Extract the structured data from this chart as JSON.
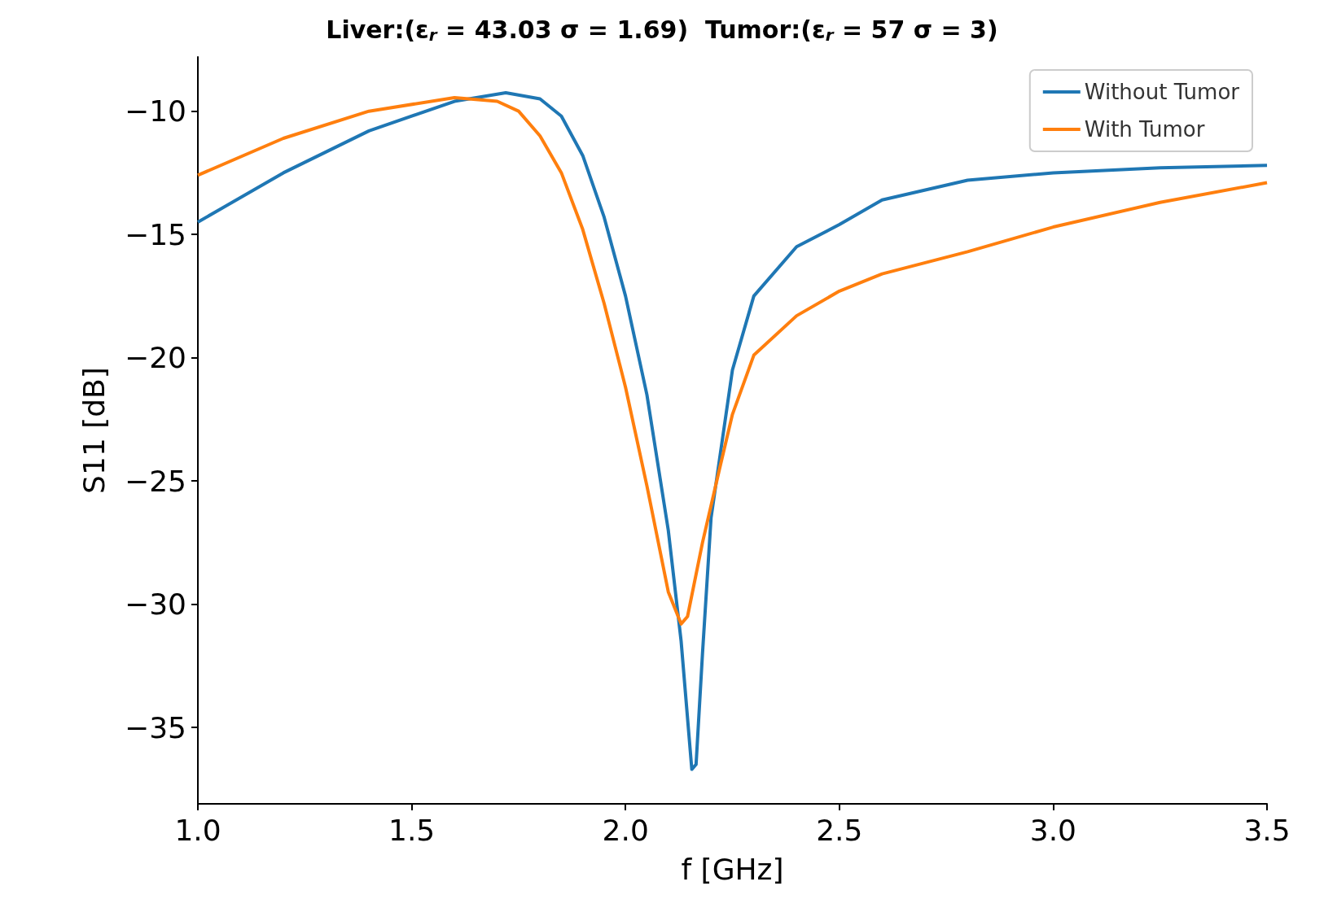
{
  "chart_data": {
    "type": "line",
    "title": "Liver:(ε$_{r}$ = 43.03 σ = 1.69)  Tumor:(ε$_{r}$ = 57 σ = 3)",
    "xlabel": "f [GHz]",
    "ylabel": "S11 [dB]",
    "xlim": [
      1.0,
      3.5
    ],
    "ylim": [
      -38.1,
      -7.8
    ],
    "xticks": [
      {
        "value": 1,
        "label": "1.0"
      },
      {
        "value": 1.5,
        "label": "1.5"
      },
      {
        "value": 2,
        "label": "2.0"
      },
      {
        "value": 2.5,
        "label": "2.5"
      },
      {
        "value": 3,
        "label": "3.0"
      },
      {
        "value": 3.5,
        "label": "3.5"
      }
    ],
    "yticks": [
      {
        "value": -35,
        "label": "−35"
      },
      {
        "value": -30,
        "label": "−30"
      },
      {
        "value": -25,
        "label": "−25"
      },
      {
        "value": -20,
        "label": "−20"
      },
      {
        "value": -15,
        "label": "−15"
      },
      {
        "value": -10,
        "label": "−10"
      }
    ],
    "grid": false,
    "legend": "top right",
    "marker": "none",
    "line_style": "solid",
    "series": [
      {
        "name": "Without Tumor",
        "color": "#1f77b4",
        "x": [
          1.0,
          1.2,
          1.4,
          1.6,
          1.72,
          1.8,
          1.85,
          1.9,
          1.95,
          2.0,
          2.05,
          2.1,
          2.13,
          2.155,
          2.165,
          2.18,
          2.2,
          2.25,
          2.3,
          2.4,
          2.5,
          2.6,
          2.8,
          3.0,
          3.25,
          3.5
        ],
        "values": [
          -14.5,
          -12.5,
          -10.8,
          -9.6,
          -9.25,
          -9.5,
          -10.2,
          -11.8,
          -14.3,
          -17.5,
          -21.5,
          -27,
          -31.5,
          -36.7,
          -36.5,
          -32,
          -26.5,
          -20.5,
          -17.5,
          -15.5,
          -14.6,
          -13.6,
          -12.8,
          -12.5,
          -12.3,
          -12.2
        ]
      },
      {
        "name": "With Tumor",
        "color": "#ff7f0e",
        "x": [
          1.0,
          1.2,
          1.4,
          1.6,
          1.7,
          1.75,
          1.8,
          1.85,
          1.9,
          1.95,
          2.0,
          2.05,
          2.1,
          2.13,
          2.145,
          2.18,
          2.22,
          2.25,
          2.3,
          2.4,
          2.5,
          2.6,
          2.8,
          3.0,
          3.25,
          3.5
        ],
        "values": [
          -12.6,
          -11.1,
          -10.0,
          -9.45,
          -9.6,
          -10.0,
          -11.0,
          -12.5,
          -14.8,
          -17.8,
          -21.2,
          -25.2,
          -29.5,
          -30.8,
          -30.5,
          -27.5,
          -24.5,
          -22.3,
          -19.9,
          -18.3,
          -17.3,
          -16.6,
          -15.7,
          -14.7,
          -13.7,
          -12.9
        ]
      }
    ]
  }
}
